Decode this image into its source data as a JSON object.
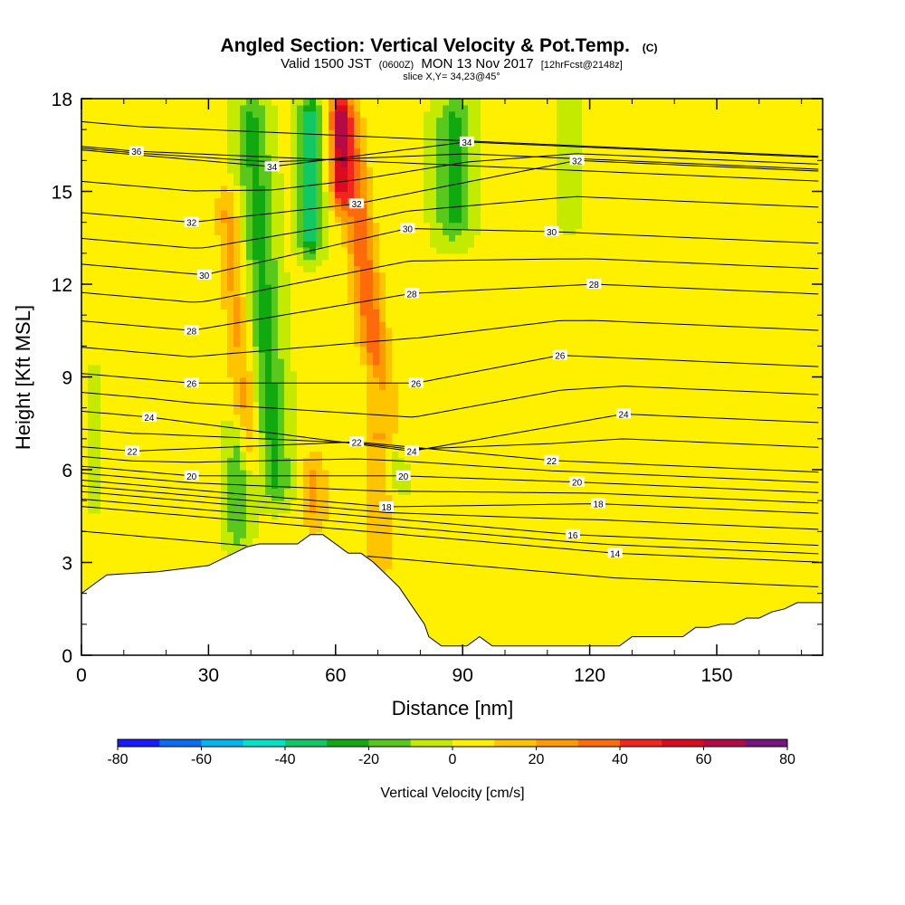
{
  "title": "Angled Section: Vertical Velocity & Pot.Temp.",
  "title_suffix": "(C)",
  "subtitle": {
    "prefix": "Valid 1500 JST",
    "utc": "(0600Z)",
    "date": "MON 13 Nov 2017",
    "forecast": "[12hrFcst@2148z]"
  },
  "slice_label": "slice X,Y= 34,23@45°",
  "colors": {
    "background": "#ffffff",
    "terrain": "#ffffff",
    "contour_line": "#000000"
  },
  "chart_data": {
    "type": "heatmap",
    "xlabel": "Distance [nm]",
    "ylabel": "Height [Kft MSL]",
    "xlim": [
      0,
      175
    ],
    "ylim": [
      0,
      18
    ],
    "x_ticks": [
      "0",
      "30",
      "60",
      "90",
      "120",
      "150"
    ],
    "y_ticks": [
      "0",
      "3",
      "6",
      "9",
      "12",
      "15",
      "18"
    ],
    "grid": false,
    "colorbar": {
      "label": "Vertical Velocity [cm/s]",
      "levels": [
        -80,
        -70,
        -60,
        -50,
        -40,
        -30,
        -20,
        -10,
        0,
        10,
        20,
        30,
        40,
        50,
        60,
        70,
        80
      ],
      "tick_labels": [
        "-80",
        "-60",
        "-40",
        "-20",
        "0",
        "20",
        "40",
        "60",
        "80"
      ],
      "colors": [
        "#1a1aff",
        "#0a6cf5",
        "#00b6f0",
        "#00e3c8",
        "#10c864",
        "#10aa10",
        "#58c81c",
        "#c4ea00",
        "#fff000",
        "#ffc400",
        "#ff9a00",
        "#ff6a0a",
        "#f2261e",
        "#dc0a1e",
        "#b40a46",
        "#781482"
      ],
      "placement": "bottom"
    },
    "terrain_kft": {
      "x": [
        0,
        3,
        6,
        18,
        30,
        33,
        36,
        39,
        42,
        51,
        54,
        57,
        60,
        63,
        66,
        69,
        72,
        75,
        78,
        81,
        82,
        85,
        88,
        91,
        94,
        97,
        100,
        127,
        130,
        142,
        145,
        148,
        151,
        154,
        157,
        160,
        163,
        166,
        169,
        172,
        175
      ],
      "height": [
        2.0,
        2.3,
        2.6,
        2.7,
        2.9,
        3.1,
        3.3,
        3.5,
        3.6,
        3.6,
        3.9,
        3.9,
        3.6,
        3.3,
        3.3,
        3.0,
        2.6,
        2.2,
        1.6,
        1.0,
        0.6,
        0.3,
        0.3,
        0.3,
        0.6,
        0.3,
        0.3,
        0.3,
        0.6,
        0.6,
        0.9,
        0.9,
        1.0,
        1.0,
        1.2,
        1.2,
        1.4,
        1.5,
        1.7,
        1.7,
        1.7
      ]
    },
    "vertical_velocity_features": [
      {
        "x": 46,
        "y_base": 5.0,
        "y_top": 18,
        "lean": -6,
        "half_width": 4.5,
        "value": -25
      },
      {
        "x": 54,
        "y_base": 13.0,
        "y_top": 18,
        "lean": 0,
        "half_width": 3.0,
        "value": -40
      },
      {
        "x": 88,
        "y_base": 13.5,
        "y_top": 18,
        "lean": 0,
        "half_width": 5.0,
        "value": -25
      },
      {
        "x": 115,
        "y_base": 14.0,
        "y_top": 18,
        "lean": 0,
        "half_width": 3.0,
        "value": -12
      },
      {
        "x": 75,
        "y_base": 5.5,
        "y_top": 9.5,
        "lean": -7,
        "half_width": 3.0,
        "value": -20
      },
      {
        "x": 37,
        "y_base": 3.5,
        "y_top": 7.5,
        "lean": 0,
        "half_width": 3.5,
        "value": -20
      },
      {
        "x": 3,
        "y_base": 5.0,
        "y_top": 9.0,
        "lean": 0,
        "half_width": 1.5,
        "value": -15
      },
      {
        "x": 72,
        "y_base": 6.5,
        "y_top": 18,
        "lean": -10,
        "half_width": 4.0,
        "value": 35
      },
      {
        "x": 61,
        "y_base": 14.5,
        "y_top": 18,
        "lean": 0,
        "half_width": 2.5,
        "value": 42
      },
      {
        "x": 40,
        "y_base": 6.0,
        "y_top": 15.0,
        "lean": -6,
        "half_width": 3.5,
        "value": 20
      },
      {
        "x": 55,
        "y_base": 4.0,
        "y_top": 6.5,
        "lean": 0,
        "half_width": 3.5,
        "value": 20
      },
      {
        "x": 70,
        "y_base": 2.5,
        "y_top": 6.5,
        "lean": 0,
        "half_width": 5.0,
        "value": 15
      },
      {
        "x": 102,
        "y_base": 1.0,
        "y_top": 16.0,
        "lean": 0,
        "half_width": 7.0,
        "value": 5
      },
      {
        "x": 160,
        "y_base": 2.0,
        "y_top": 18,
        "lean": 0,
        "half_width": 10.0,
        "value": 5
      },
      {
        "x": 22,
        "y_base": 2.5,
        "y_top": 18,
        "lean": 0,
        "half_width": 5.0,
        "value": 5
      },
      {
        "x": 130,
        "y_base": 2.0,
        "y_top": 12.0,
        "lean": 0,
        "half_width": 4.0,
        "value": 4
      }
    ],
    "potential_temperature_contours": {
      "levels": [
        14,
        16,
        18,
        20,
        22,
        24,
        26,
        28,
        30,
        32,
        34,
        36
      ],
      "labels": [
        {
          "text": "14",
          "x": 126,
          "y": 3.3
        },
        {
          "text": "16",
          "x": 116,
          "y": 3.9
        },
        {
          "text": "18",
          "x": 122,
          "y": 4.9
        },
        {
          "text": "18",
          "x": 72,
          "y": 4.8
        },
        {
          "text": "20",
          "x": 117,
          "y": 5.6
        },
        {
          "text": "20",
          "x": 26,
          "y": 5.8
        },
        {
          "text": "20",
          "x": 76,
          "y": 5.8
        },
        {
          "text": "22",
          "x": 12,
          "y": 6.6
        },
        {
          "text": "22",
          "x": 65,
          "y": 6.9
        },
        {
          "text": "22",
          "x": 111,
          "y": 6.3
        },
        {
          "text": "24",
          "x": 16,
          "y": 7.7
        },
        {
          "text": "24",
          "x": 78,
          "y": 6.6
        },
        {
          "text": "24",
          "x": 128,
          "y": 7.8
        },
        {
          "text": "26",
          "x": 26,
          "y": 8.8
        },
        {
          "text": "26",
          "x": 79,
          "y": 8.8
        },
        {
          "text": "26",
          "x": 113,
          "y": 9.7
        },
        {
          "text": "28",
          "x": 26,
          "y": 10.5
        },
        {
          "text": "28",
          "x": 78,
          "y": 11.7
        },
        {
          "text": "28",
          "x": 121,
          "y": 12.0
        },
        {
          "text": "30",
          "x": 29,
          "y": 12.3
        },
        {
          "text": "30",
          "x": 77,
          "y": 13.8
        },
        {
          "text": "30",
          "x": 111,
          "y": 13.7
        },
        {
          "text": "32",
          "x": 26,
          "y": 14.0
        },
        {
          "text": "32",
          "x": 65,
          "y": 14.6
        },
        {
          "text": "32",
          "x": 117,
          "y": 16.0
        },
        {
          "text": "34",
          "x": 45,
          "y": 15.8
        },
        {
          "text": "34",
          "x": 91,
          "y": 16.6
        },
        {
          "text": "36",
          "x": 13,
          "y": 16.3
        }
      ]
    }
  }
}
